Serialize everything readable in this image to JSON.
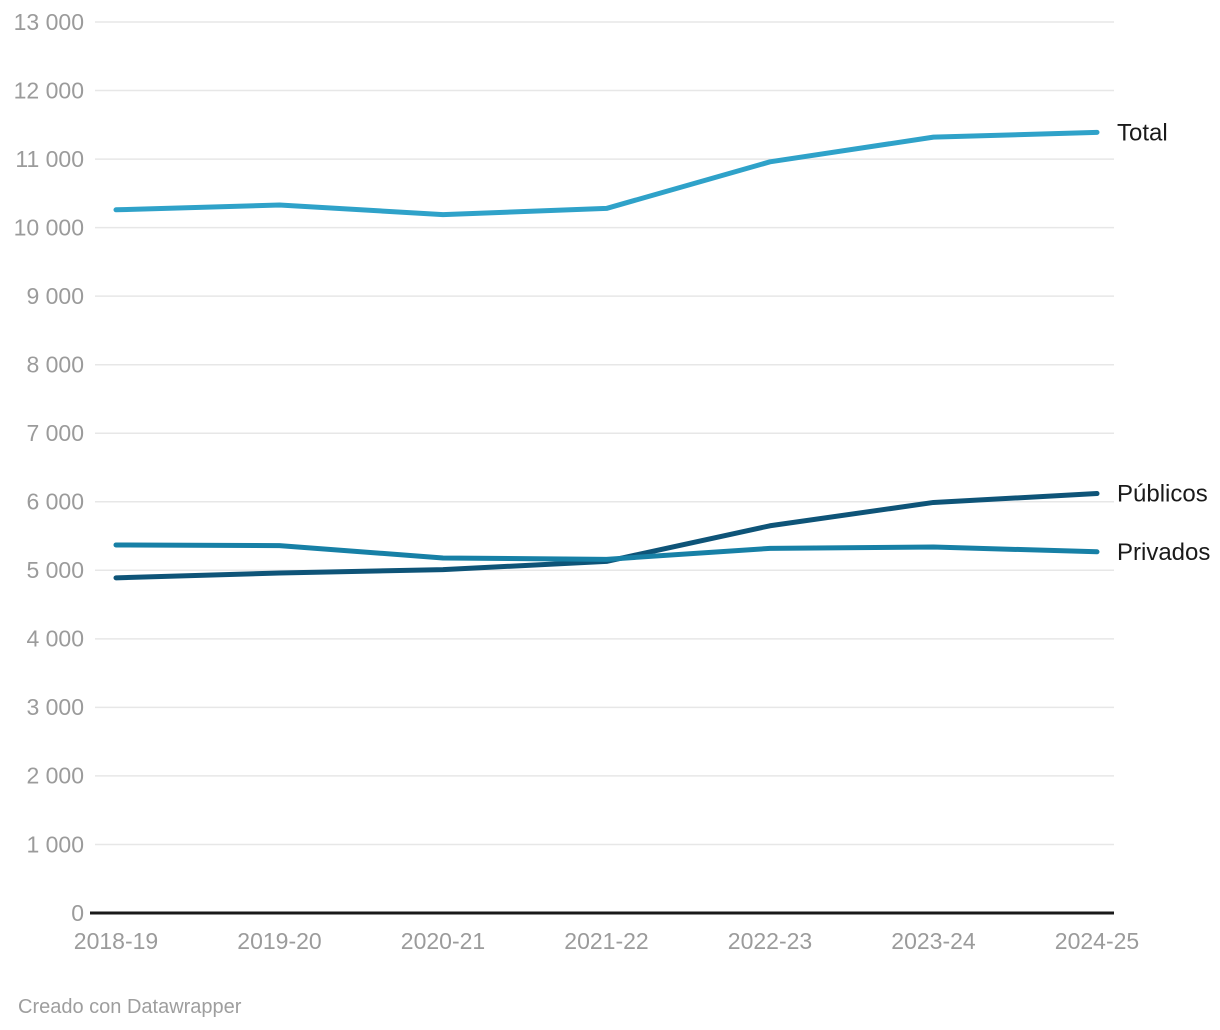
{
  "chart_data": {
    "type": "line",
    "x_categories": [
      "2018-19",
      "2019-20",
      "2020-21",
      "2021-22",
      "2022-23",
      "2023-24",
      "2024-25"
    ],
    "series": [
      {
        "name": "Total",
        "color": "#2fa2c9",
        "values": [
          10260,
          10330,
          10190,
          10280,
          10960,
          11320,
          11390
        ]
      },
      {
        "name": "Públicos",
        "color": "#0e5478",
        "values": [
          4890,
          4960,
          5010,
          5130,
          5650,
          5990,
          6120
        ]
      },
      {
        "name": "Privados",
        "color": "#1780a6",
        "values": [
          5370,
          5360,
          5180,
          5160,
          5320,
          5340,
          5270
        ]
      }
    ],
    "y_ticks": [
      {
        "value": 0,
        "label": "0"
      },
      {
        "value": 1000,
        "label": "1 000"
      },
      {
        "value": 2000,
        "label": "2 000"
      },
      {
        "value": 3000,
        "label": "3 000"
      },
      {
        "value": 4000,
        "label": "4 000"
      },
      {
        "value": 5000,
        "label": "5 000"
      },
      {
        "value": 6000,
        "label": "6 000"
      },
      {
        "value": 7000,
        "label": "7 000"
      },
      {
        "value": 8000,
        "label": "8 000"
      },
      {
        "value": 9000,
        "label": "9 000"
      },
      {
        "value": 10000,
        "label": "10 000"
      },
      {
        "value": 11000,
        "label": "11 000"
      },
      {
        "value": 12000,
        "label": "12 000"
      },
      {
        "value": 13000,
        "label": "13 000"
      }
    ],
    "ylim": [
      0,
      13000
    ],
    "title": "",
    "xlabel": "",
    "ylabel": "",
    "grid": true,
    "legend_position": "direct-labels-right",
    "colors": {
      "tick_label": "#9b9b9b",
      "gridline": "#e7e7e7",
      "baseline": "#1a1a1a",
      "series_label": "#1a1a1a",
      "background": "#ffffff"
    }
  },
  "footer": {
    "credit": "Creado con Datawrapper"
  }
}
